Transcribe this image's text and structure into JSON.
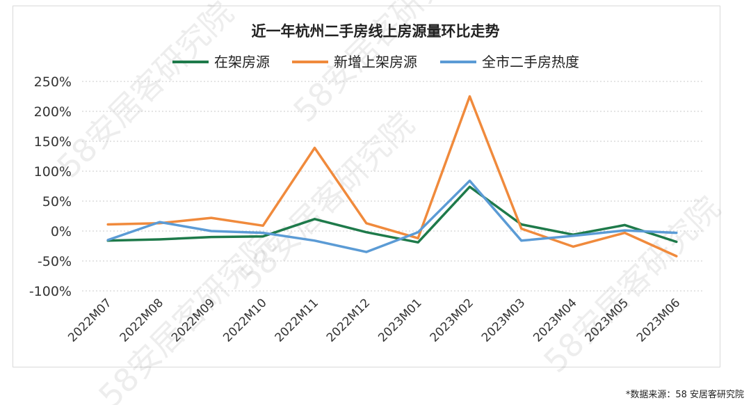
{
  "chart_data": {
    "type": "line",
    "title": "近一年杭州二手房线上房源量环比走势",
    "categories": [
      "2022M07",
      "2022M08",
      "2022M09",
      "2022M10",
      "2022M11",
      "2022M12",
      "2023M01",
      "2023M02",
      "2023M03",
      "2023M04",
      "2023M05",
      "2023M06"
    ],
    "series": [
      {
        "name": "在架房源",
        "color": "#1e7a4a",
        "values": [
          -16,
          -14,
          -10,
          -9,
          20,
          -2,
          -19,
          74,
          11,
          -6,
          10,
          -18
        ]
      },
      {
        "name": "新增上架房源",
        "color": "#f08a3c",
        "values": [
          11,
          13,
          22,
          9,
          139,
          13,
          -12,
          225,
          4,
          -26,
          -3,
          -42
        ]
      },
      {
        "name": "全市二手房热度",
        "color": "#5b9bd5",
        "values": [
          -15,
          15,
          0,
          -3,
          -16,
          -35,
          -2,
          84,
          -16,
          -8,
          1,
          -3
        ]
      }
    ],
    "ylim": [
      -100,
      250
    ],
    "yticks": [
      250,
      200,
      150,
      100,
      50,
      0,
      -50,
      -100
    ],
    "ytick_labels": [
      "250%",
      "200%",
      "150%",
      "100%",
      "50%",
      "0%",
      "-50%",
      "-100%"
    ],
    "grid": true,
    "legend_position": "top-center"
  },
  "source_note": "*数据来源：58 安居客研究院",
  "watermark_text": "58安居客研究院"
}
